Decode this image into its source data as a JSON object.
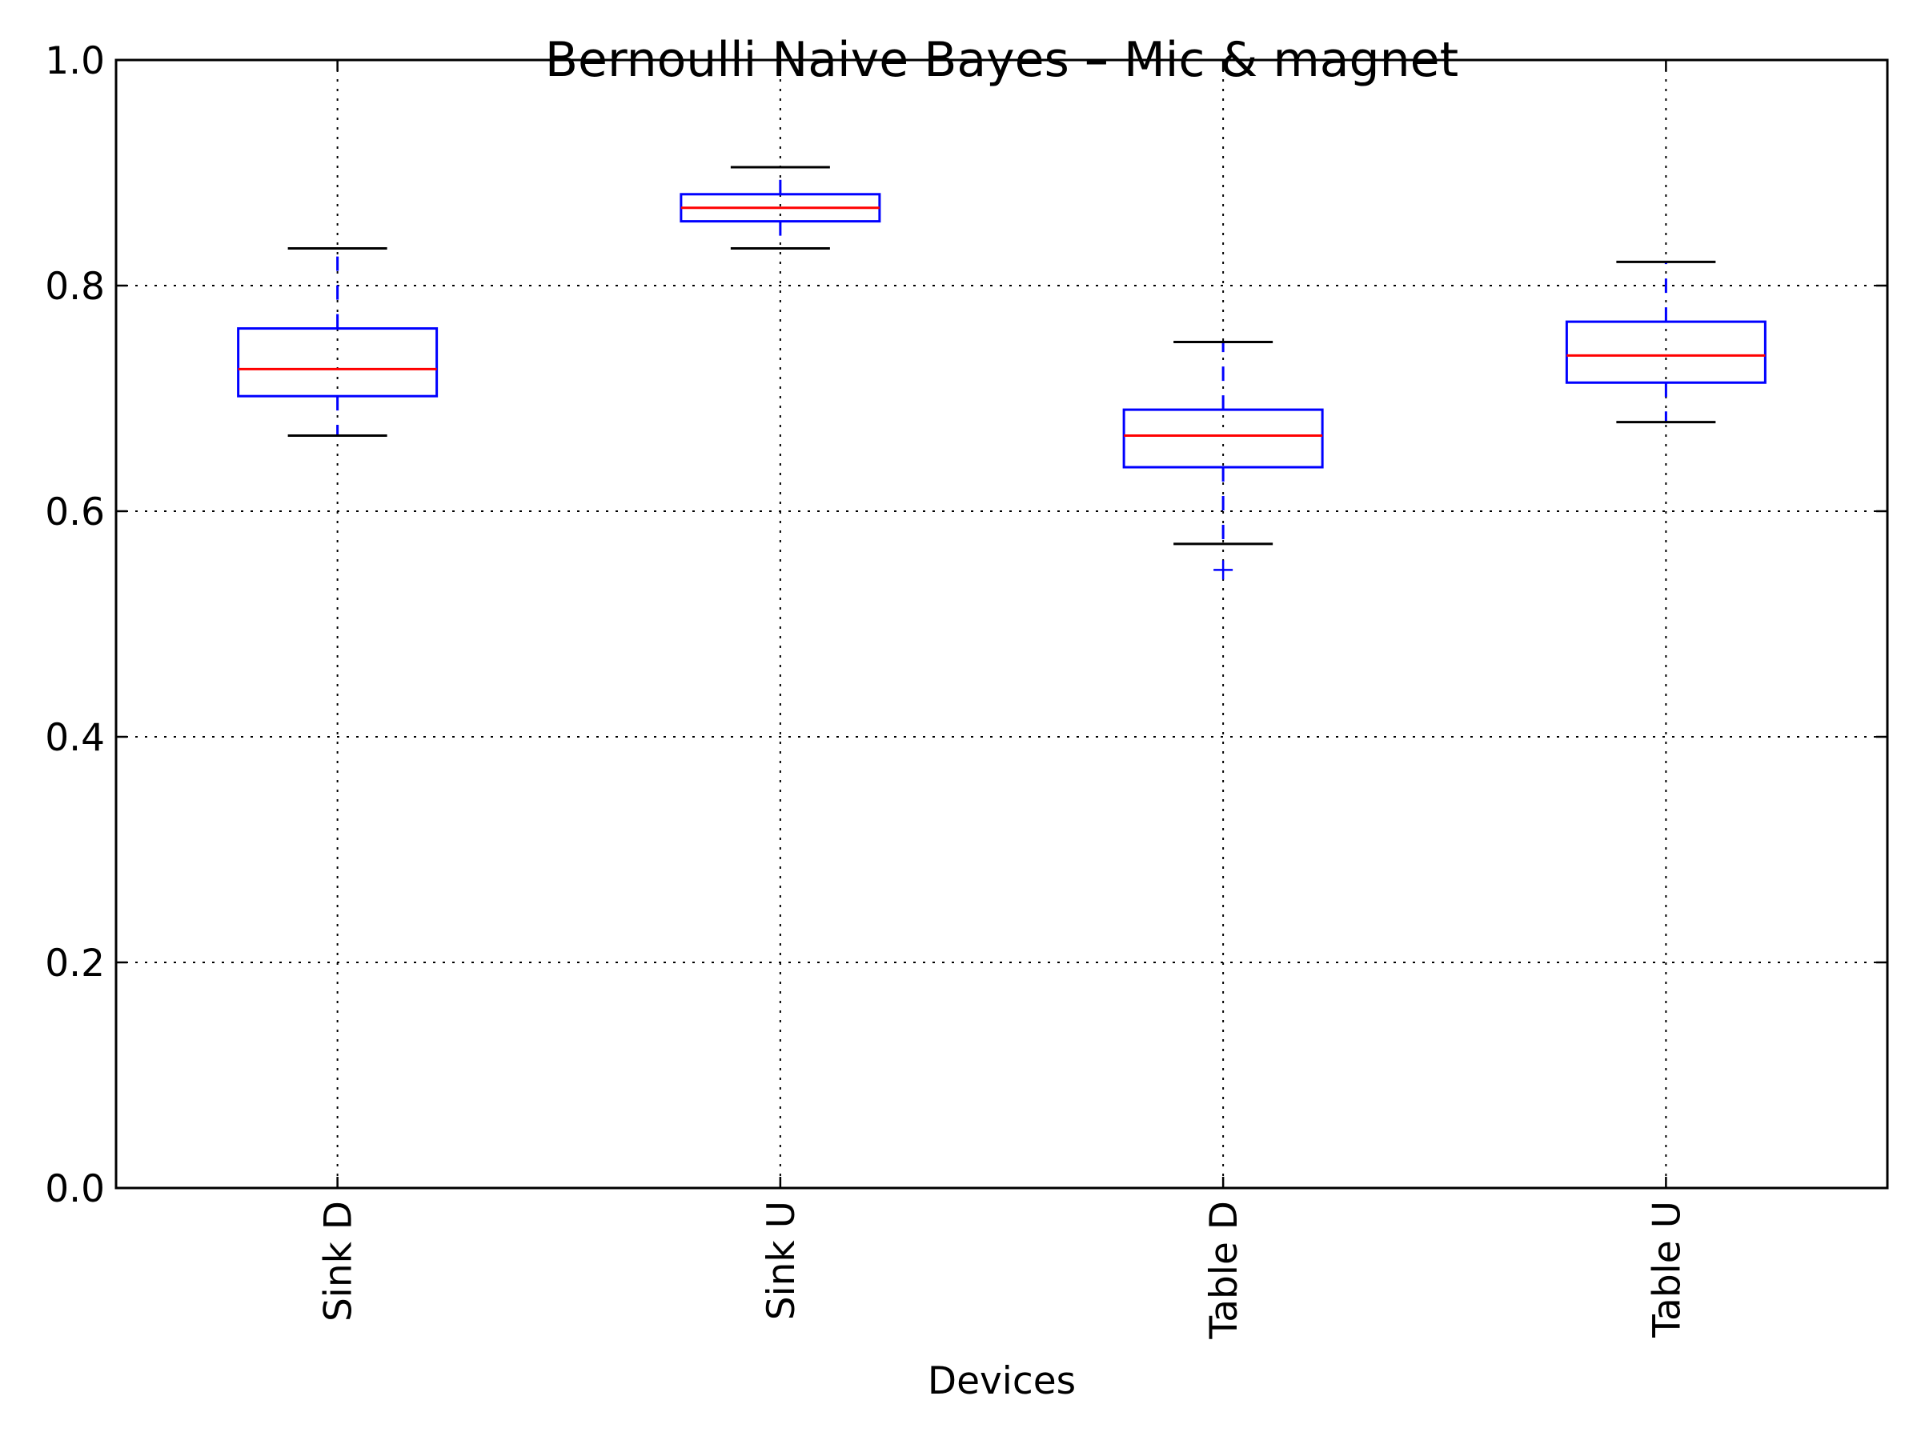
{
  "chart_data": {
    "type": "box",
    "title": "Bernoulli Naive Bayes – Mic & magnet",
    "xlabel": "Devices",
    "ylabel": "",
    "ylim": [
      0.0,
      1.0
    ],
    "yticks": [
      "0.0",
      "0.2",
      "0.4",
      "0.6",
      "0.8",
      "1.0"
    ],
    "yticks_values": [
      0.0,
      0.2,
      0.4,
      0.6,
      0.8,
      1.0
    ],
    "grid": true,
    "categories": [
      "Sink D",
      "Sink U",
      "Table D",
      "Table U"
    ],
    "boxes": [
      {
        "category": "Sink D",
        "whisker_low": 0.667,
        "q1": 0.702,
        "median": 0.726,
        "q3": 0.762,
        "whisker_high": 0.833,
        "outliers": []
      },
      {
        "category": "Sink U",
        "whisker_low": 0.833,
        "q1": 0.857,
        "median": 0.869,
        "q3": 0.881,
        "whisker_high": 0.905,
        "outliers": []
      },
      {
        "category": "Table D",
        "whisker_low": 0.571,
        "q1": 0.639,
        "median": 0.667,
        "q3": 0.69,
        "whisker_high": 0.75,
        "outliers": [
          0.548
        ]
      },
      {
        "category": "Table U",
        "whisker_low": 0.679,
        "q1": 0.714,
        "median": 0.738,
        "q3": 0.768,
        "whisker_high": 0.821,
        "outliers": []
      }
    ],
    "colors": {
      "box": "#0000ff",
      "median": "#ff0000",
      "whisker": "#0000ff",
      "cap": "#000000",
      "outlier": "#0000ff"
    }
  }
}
